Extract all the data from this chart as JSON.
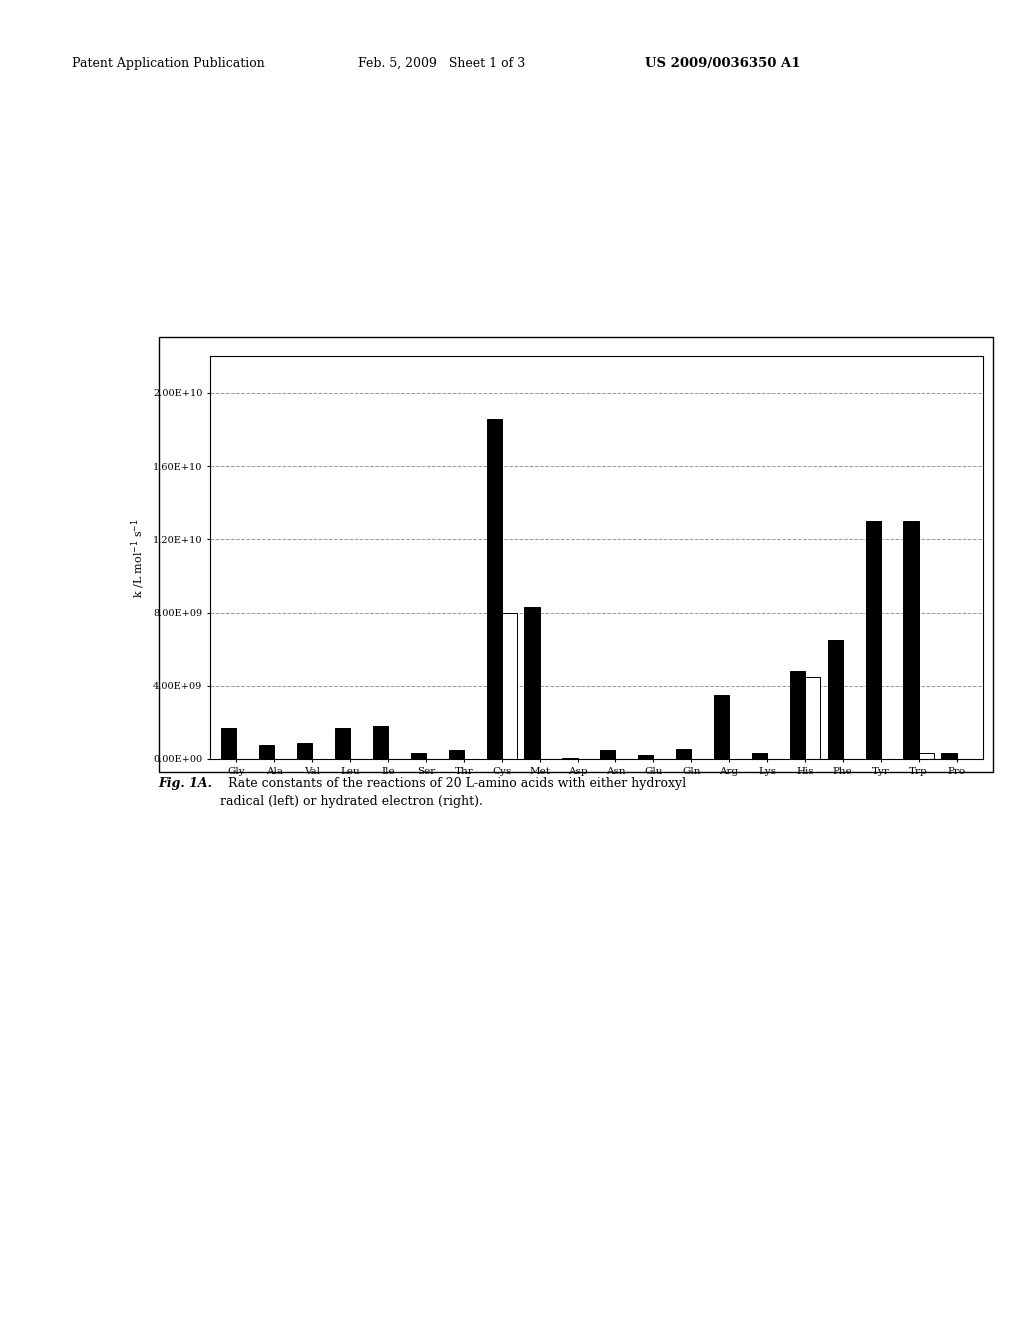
{
  "amino_acids": [
    "Gly",
    "Ala",
    "Val",
    "Leu",
    "Ile",
    "Ser",
    "Thr",
    "Cys",
    "Met",
    "Asp",
    "Asn",
    "Glu",
    "Gln",
    "Arg",
    "Lys",
    "His",
    "Phe",
    "Tyr",
    "Trp",
    "Pro"
  ],
  "hydroxyl_radical": [
    1700000000.0,
    770000000.0,
    850000000.0,
    1700000000.0,
    1800000000.0,
    320000000.0,
    510000000.0,
    18600000000.0,
    8300000000.0,
    75000000.0,
    490000000.0,
    230000000.0,
    540000000.0,
    3500000000.0,
    350000000.0,
    4800000000.0,
    6500000000.0,
    13000000000.0,
    13000000000.0,
    350000000.0
  ],
  "hydrated_electron": [
    0,
    0,
    0,
    0,
    0,
    0,
    0,
    8000000000.0,
    0,
    0,
    0,
    0,
    0,
    0,
    0,
    4500000000.0,
    0,
    0,
    350000000.0,
    0
  ],
  "ylabel": "k /L mol⁻¹ s⁻¹",
  "ylim": [
    0,
    22000000000.0
  ],
  "yticks": [
    0,
    4000000000.0,
    8000000000.0,
    12000000000.0,
    16000000000.0,
    20000000000.0
  ],
  "ytick_labels": [
    "0.00E+00",
    "4.00E+09",
    "8.00E+09",
    "1.20E+10",
    "1.60E+10",
    "2.00E+10"
  ],
  "bar_color_black": "#000000",
  "bar_color_white": "#ffffff",
  "bar_edge_color": "#000000",
  "background_color": "#ffffff",
  "grid_color": "#999999",
  "grid_linestyle": "--",
  "grid_linewidth": 0.7,
  "header_left": "Patent Application Publication",
  "header_mid": "Feb. 5, 2009   Sheet 1 of 3",
  "header_right": "US 2009/0036350 A1",
  "caption_bold": "Fig. 1A.",
  "caption_normal": "  Rate constants of the reactions of 20 L-amino acids with either hydroxyl\nradical (left) or hydrated electron (right)."
}
